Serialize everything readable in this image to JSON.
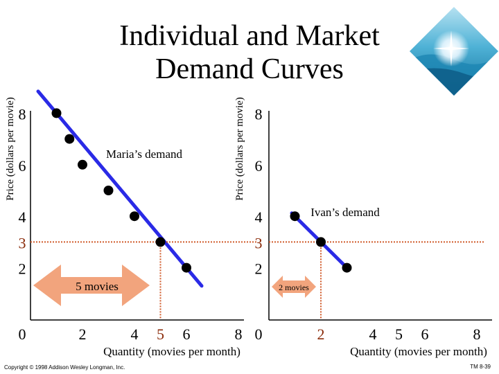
{
  "slide": {
    "title_line1": "Individual and Market",
    "title_line2": "Demand Curves",
    "copyright": "Copyright © 1998 Addison Wesley Longman, Inc.",
    "slide_number": "TM 8-39",
    "logo": "ocean-wave-logo-icon"
  },
  "colors": {
    "curve": "#2a2ae6",
    "point": "#000000",
    "guide": "#d05a2a",
    "arrow": "#f2a47d",
    "highlight_text": "#8a2b0a"
  },
  "chart_data": [
    {
      "type": "line",
      "series": [
        {
          "name": "Maria’s demand",
          "x": [
            1,
            1.5,
            2,
            3,
            4,
            5,
            6
          ],
          "y": [
            8,
            7,
            6,
            5,
            4,
            3,
            2
          ]
        }
      ],
      "ylabel": "Price (dollars per movie)",
      "xlabel": "Quantity (movies  per month)",
      "xticks": [
        "0",
        "2",
        "4",
        "5",
        "6",
        "8"
      ],
      "xtick_values": [
        0,
        2,
        4,
        5,
        6,
        8
      ],
      "yticks": [
        "2",
        "3",
        "4",
        "6",
        "8"
      ],
      "ytick_values": [
        2,
        3,
        4,
        6,
        8
      ],
      "highlight": {
        "price": 3,
        "quantity": 5,
        "price_label": "3",
        "quantity_label": "5"
      },
      "annotation": "5 movies",
      "xlim": [
        0,
        8
      ],
      "ylim": [
        0,
        9
      ]
    },
    {
      "type": "line",
      "series": [
        {
          "name": "Ivan’s demand",
          "x": [
            1,
            2,
            3
          ],
          "y": [
            4,
            3,
            2
          ]
        }
      ],
      "ylabel": "Price (dollars per movie)",
      "xlabel": "Quantity (movies per month)",
      "xticks": [
        "0",
        "2",
        "4",
        "5",
        "6",
        "8"
      ],
      "xtick_values": [
        0,
        2,
        4,
        5,
        6,
        8
      ],
      "yticks": [
        "2",
        "3",
        "4",
        "6",
        "8"
      ],
      "ytick_values": [
        2,
        3,
        4,
        6,
        8
      ],
      "highlight": {
        "price": 3,
        "quantity": 2,
        "price_label": "3",
        "quantity_label": "2"
      },
      "annotation": "2 movies",
      "xlim": [
        0,
        8
      ],
      "ylim": [
        0,
        9
      ]
    }
  ]
}
